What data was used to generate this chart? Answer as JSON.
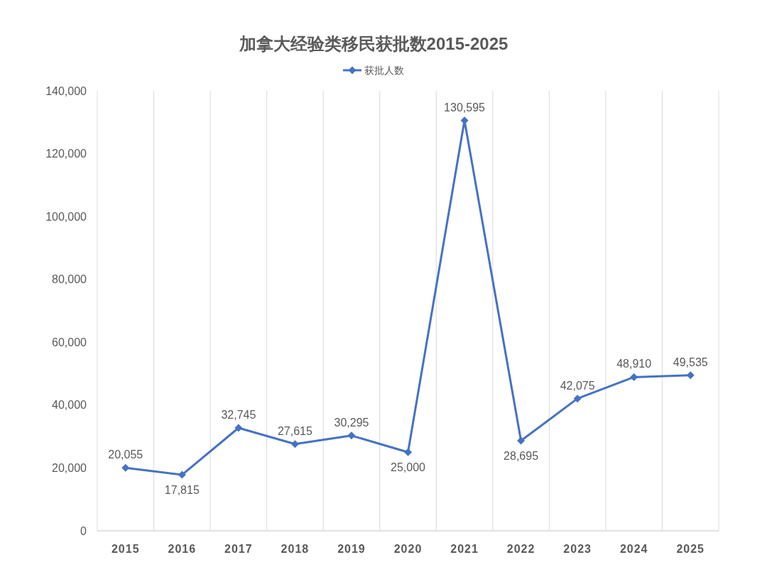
{
  "chart_data": {
    "type": "line",
    "title": "加拿大经验类移民获批数2015-2025",
    "categories": [
      "2015",
      "2016",
      "2017",
      "2018",
      "2019",
      "2020",
      "2021",
      "2022",
      "2023",
      "2024",
      "2025"
    ],
    "series": [
      {
        "name": "获批人数",
        "color": "#4472c4",
        "values": [
          20055,
          17815,
          32745,
          27615,
          30295,
          25000,
          130595,
          28695,
          42075,
          48910,
          49535
        ],
        "value_labels": [
          "20,055",
          "17,815",
          "32,745",
          "27,615",
          "30,295",
          "25,000",
          "130,595",
          "28,695",
          "42,075",
          "48,910",
          "49,535"
        ]
      }
    ],
    "ylim": [
      0,
      140000
    ],
    "yticks": [
      0,
      {
        "value": 20000,
        "label": "20,000"
      },
      {
        "value": 40000,
        "label": "40,000"
      },
      {
        "value": 60000,
        "label": "60,000"
      },
      {
        "value": 80000,
        "label": "80,000"
      },
      {
        "value": 100000,
        "label": "100,000"
      },
      {
        "value": 120000,
        "label": "120,000"
      },
      {
        "value": 140000,
        "label": "140,000"
      }
    ],
    "grid": "x",
    "legend": "top",
    "marker": "diamond",
    "line_style": "solid"
  }
}
